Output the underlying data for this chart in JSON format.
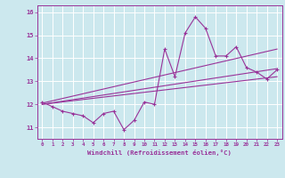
{
  "xlabel": "Windchill (Refroidissement éolien,°C)",
  "background_color": "#cce8ee",
  "grid_color": "#ffffff",
  "line_color": "#993399",
  "x_hours": [
    0,
    1,
    2,
    3,
    4,
    5,
    6,
    7,
    8,
    9,
    10,
    11,
    12,
    13,
    14,
    15,
    16,
    17,
    18,
    19,
    20,
    21,
    22,
    23
  ],
  "main_line": [
    12.1,
    11.9,
    11.7,
    11.6,
    11.5,
    11.2,
    11.6,
    11.7,
    10.9,
    11.3,
    12.1,
    12.0,
    14.4,
    13.2,
    15.1,
    15.8,
    15.3,
    14.1,
    14.1,
    14.5,
    13.6,
    13.4,
    13.1,
    13.5
  ],
  "trend_line1_x": [
    0,
    23
  ],
  "trend_line1_y": [
    12.05,
    14.4
  ],
  "trend_line2_x": [
    0,
    23
  ],
  "trend_line2_y": [
    12.0,
    13.55
  ],
  "trend_line3_x": [
    0,
    23
  ],
  "trend_line3_y": [
    12.0,
    13.2
  ],
  "ylim": [
    10.5,
    16.3
  ],
  "yticks": [
    11,
    12,
    13,
    14,
    15,
    16
  ],
  "xticks": [
    0,
    1,
    2,
    3,
    4,
    5,
    6,
    7,
    8,
    9,
    10,
    11,
    12,
    13,
    14,
    15,
    16,
    17,
    18,
    19,
    20,
    21,
    22,
    23
  ],
  "xlim": [
    -0.5,
    23.5
  ]
}
